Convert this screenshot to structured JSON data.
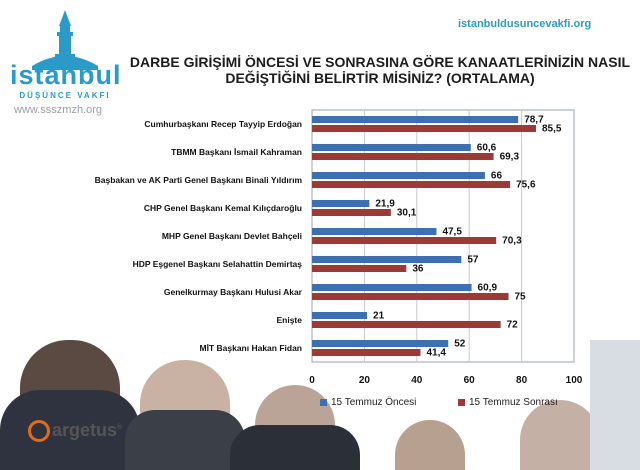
{
  "header": {
    "logo_name": "istanbul",
    "logo_sub": "DÜŞÜNCE VAKFI",
    "watermark": "www.ssszmzh.org",
    "site": "istanbuldusuncevakfi.org",
    "brand": "argetus"
  },
  "colors": {
    "series1": "#3d6fb5",
    "series2": "#9c3a36"
  },
  "chart_data": {
    "type": "bar",
    "orientation": "horizontal",
    "title": "DARBE GİRİŞİMİ ÖNCESİ VE SONRASINA GÖRE KANAATLERİNİZİN NASIL DEĞİŞTİĞİNİ BELİRTİR MİSİNİZ? (ORTALAMA)",
    "categories": [
      "Cumhurbaşkanı Recep Tayyip Erdoğan",
      "TBMM Başkanı İsmail Kahraman",
      "Başbakan ve AK Parti Genel Başkanı Binali Yıldırım",
      "CHP Genel Başkanı Kemal Kılıçdaroğlu",
      "MHP Genel Başkanı Devlet Bahçeli",
      "HDP Eşgenel Başkanı Selahattin Demirtaş",
      "Genelkurmay Başkanı Hulusi Akar",
      "Enişte",
      "MİT Başkanı Hakan Fidan"
    ],
    "series": [
      {
        "name": "15 Temmuz Öncesi",
        "values": [
          78.7,
          60.6,
          66,
          21.9,
          47.5,
          57,
          60.9,
          21,
          52
        ],
        "labels": [
          "78,7",
          "60,6",
          "66",
          "21,9",
          "47,5",
          "57",
          "60,9",
          "21",
          "52"
        ]
      },
      {
        "name": "15 Temmuz  Sonrası",
        "values": [
          85.5,
          69.3,
          75.6,
          30.1,
          70.3,
          36,
          75,
          72,
          41.4
        ],
        "labels": [
          "85,5",
          "69,3",
          "75,6",
          "30,1",
          "70,3",
          "36",
          "75",
          "72",
          "41,4"
        ]
      }
    ],
    "xlim": [
      0,
      100
    ],
    "xticks": [
      "0",
      "20",
      "40",
      "60",
      "80",
      "100"
    ],
    "grid": true,
    "legend": "bottom"
  }
}
